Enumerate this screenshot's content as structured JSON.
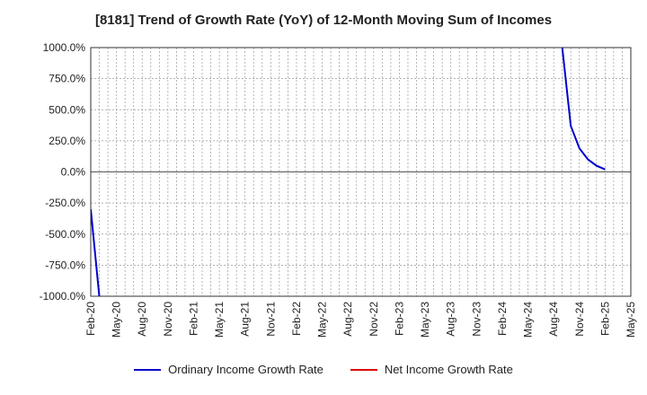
{
  "chart_data": {
    "type": "line",
    "title": "[8181]  Trend of Growth Rate (YoY) of 12-Month Moving Sum of Incomes",
    "xlabel": "",
    "ylabel": "",
    "ylim": [
      -1000,
      1000
    ],
    "yticks": [
      "1000.0%",
      "750.0%",
      "500.0%",
      "250.0%",
      "0.0%",
      "-250.0%",
      "-500.0%",
      "-750.0%",
      "-1000.0%"
    ],
    "ytick_values": [
      1000,
      750,
      500,
      250,
      0,
      -250,
      -500,
      -750,
      -1000
    ],
    "xticks": [
      "Feb-20",
      "May-20",
      "Aug-20",
      "Nov-20",
      "Feb-21",
      "May-21",
      "Aug-21",
      "Nov-21",
      "Feb-22",
      "May-22",
      "Aug-22",
      "Nov-22",
      "Feb-23",
      "May-23",
      "Aug-23",
      "Nov-23",
      "Feb-24",
      "May-24",
      "Aug-24",
      "Nov-24",
      "Feb-25",
      "May-25"
    ],
    "x_start": "2020-02",
    "x_end": "2025-05",
    "grid": true,
    "legend_position": "bottom",
    "series": [
      {
        "name": "Ordinary Income Growth Rate",
        "color": "#0000cc",
        "points": [
          {
            "x": "2020-02",
            "y": -300
          },
          {
            "x": "2020-03",
            "y": -1000
          },
          {
            "x": "2024-09",
            "y": 1000
          },
          {
            "x": "2024-10",
            "y": 370
          },
          {
            "x": "2024-11",
            "y": 190
          },
          {
            "x": "2024-12",
            "y": 100
          },
          {
            "x": "2025-01",
            "y": 50
          },
          {
            "x": "2025-02",
            "y": 20
          }
        ]
      },
      {
        "name": "Net Income Growth Rate",
        "color": "#dd0000",
        "points": []
      }
    ]
  }
}
